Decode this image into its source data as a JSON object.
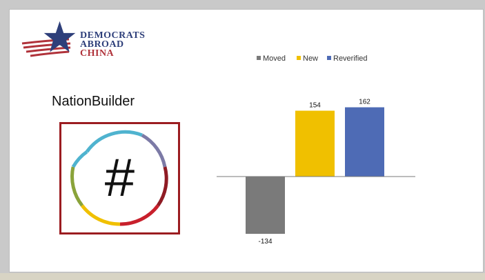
{
  "logo": {
    "line1": "DEMOCRATS",
    "line2": "ABROAD",
    "line3": "CHINA",
    "colors": {
      "blue": "#2e3f7a",
      "red": "#b0323a"
    }
  },
  "nationbuilder": {
    "title": "NationBuilder",
    "symbol": "#",
    "icon": "nationbuilder-hash-icon"
  },
  "chart_data": {
    "type": "bar",
    "categories": [
      "Moved",
      "New",
      "Reverified"
    ],
    "values": [
      -134,
      154,
      162
    ],
    "data_labels": [
      "-134",
      "154",
      "162"
    ],
    "colors": [
      "#7a7a7a",
      "#f0c000",
      "#4e6bb5"
    ],
    "legend": [
      "Moved",
      "New",
      "Reverified"
    ],
    "legend_position": "top",
    "ylim": [
      -134,
      162
    ],
    "grid": false
  }
}
